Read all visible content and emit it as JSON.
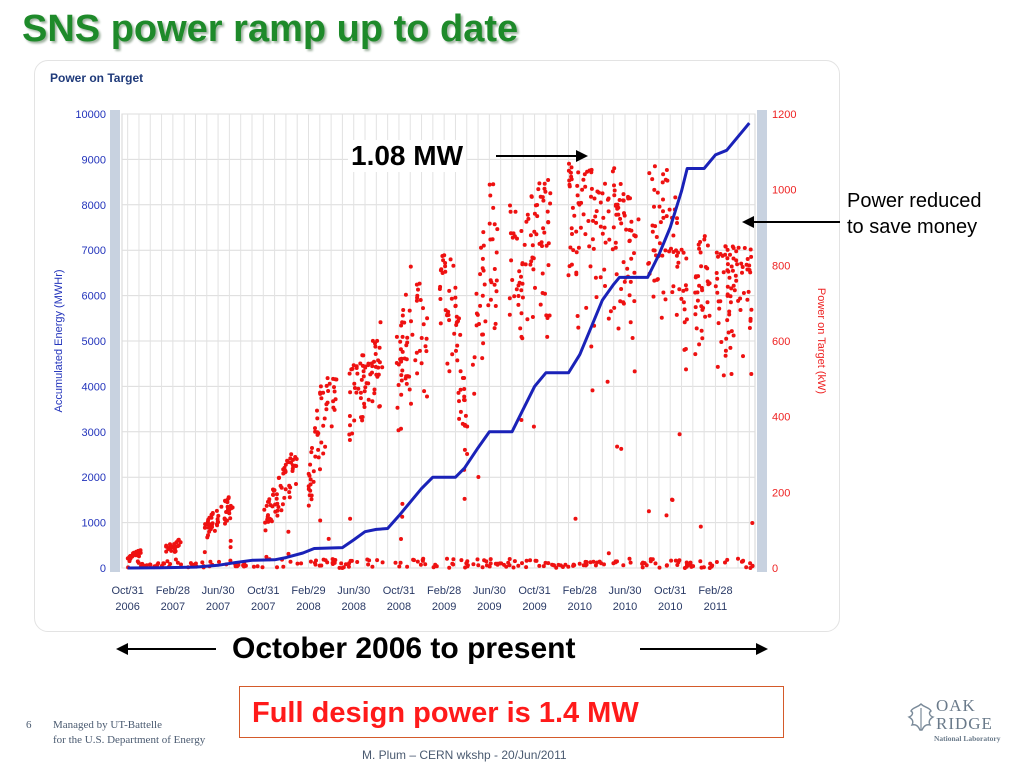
{
  "slide": {
    "title": "SNS power ramp up to date",
    "callout_mw": "1.08 MW",
    "callout_reduced": "Power reduced to save money",
    "callout_period": "October 2006 to present",
    "design_power": "Full design power is 1.4 MW",
    "page_number": "6",
    "managed_by_line1": "Managed by UT-Battelle",
    "managed_by_line2": "for the U.S. Department of Energy",
    "footer_credit": "M. Plum – CERN wkshp - 20/Jun/2011",
    "logo_line1": "OAK",
    "logo_line2": "RIDGE",
    "logo_line3": "National Laboratory"
  },
  "colors": {
    "title_green": "#1e8a2a",
    "energy_line": "#1a22b8",
    "power_points": "#ee1111",
    "axis_left": "#2233bb",
    "axis_right": "#ee2222",
    "design_text": "#ff1a1a"
  },
  "chart_data": {
    "type": "scatter",
    "title": "Power on Target",
    "x_ticks": [
      {
        "line1": "Oct/31",
        "line2": "2006",
        "month": 0
      },
      {
        "line1": "Feb/28",
        "line2": "2007",
        "month": 4
      },
      {
        "line1": "Jun/30",
        "line2": "2007",
        "month": 8
      },
      {
        "line1": "Oct/31",
        "line2": "2007",
        "month": 12
      },
      {
        "line1": "Feb/29",
        "line2": "2008",
        "month": 16
      },
      {
        "line1": "Jun/30",
        "line2": "2008",
        "month": 20
      },
      {
        "line1": "Oct/31",
        "line2": "2008",
        "month": 24
      },
      {
        "line1": "Feb/28",
        "line2": "2009",
        "month": 28
      },
      {
        "line1": "Jun/30",
        "line2": "2009",
        "month": 32
      },
      {
        "line1": "Oct/31",
        "line2": "2009",
        "month": 36
      },
      {
        "line1": "Feb/28",
        "line2": "2010",
        "month": 40
      },
      {
        "line1": "Jun/30",
        "line2": "2010",
        "month": 44
      },
      {
        "line1": "Oct/31",
        "line2": "2010",
        "month": 48
      },
      {
        "line1": "Feb/28",
        "line2": "2011",
        "month": 52
      }
    ],
    "x_range_months": [
      -0.5,
      55.5
    ],
    "y_left": {
      "label": "Accumulated Energy (MWHr)",
      "range": [
        0,
        10000
      ],
      "ticks": [
        0,
        1000,
        2000,
        3000,
        4000,
        5000,
        6000,
        7000,
        8000,
        9000,
        10000
      ]
    },
    "y_right": {
      "label": "Power on Target (kW)",
      "range": [
        0,
        1200
      ],
      "ticks": [
        0,
        200,
        400,
        600,
        800,
        1000,
        1200
      ]
    },
    "grid": true,
    "series": [
      {
        "name": "Accumulated Energy",
        "axis": "left",
        "style": "line",
        "points": [
          [
            0,
            0
          ],
          [
            3,
            5
          ],
          [
            6,
            20
          ],
          [
            8,
            60
          ],
          [
            9.5,
            120
          ],
          [
            11,
            170
          ],
          [
            13,
            180
          ],
          [
            14,
            230
          ],
          [
            15.5,
            330
          ],
          [
            16.5,
            430
          ],
          [
            19,
            450
          ],
          [
            20,
            620
          ],
          [
            21,
            800
          ],
          [
            22,
            850
          ],
          [
            23,
            870
          ],
          [
            24,
            1150
          ],
          [
            25,
            1450
          ],
          [
            26,
            1750
          ],
          [
            27,
            2000
          ],
          [
            29,
            2000
          ],
          [
            29.8,
            2200
          ],
          [
            31,
            2650
          ],
          [
            32,
            3000
          ],
          [
            34,
            3000
          ],
          [
            35,
            3500
          ],
          [
            36,
            4000
          ],
          [
            37,
            4300
          ],
          [
            39,
            4300
          ],
          [
            40,
            4700
          ],
          [
            41,
            5300
          ],
          [
            42,
            5900
          ],
          [
            43,
            6250
          ],
          [
            43.5,
            6400
          ],
          [
            44,
            6400
          ],
          [
            46,
            6400
          ],
          [
            47,
            6900
          ],
          [
            48,
            7500
          ],
          [
            49,
            8300
          ],
          [
            49.5,
            8800
          ],
          [
            51,
            8800
          ],
          [
            52,
            9100
          ],
          [
            53,
            9200
          ],
          [
            54,
            9500
          ],
          [
            55,
            9800
          ]
        ]
      },
      {
        "name": "Power on Target",
        "axis": "right",
        "style": "points",
        "envelope": [
          [
            0,
            30
          ],
          [
            1,
            50
          ],
          [
            2,
            30
          ],
          [
            3,
            70
          ],
          [
            4,
            60
          ],
          [
            5,
            90
          ],
          [
            6,
            40
          ],
          [
            7,
            130
          ],
          [
            8,
            160
          ],
          [
            9,
            190
          ],
          [
            10,
            130
          ],
          [
            11,
            200
          ],
          [
            12,
            150
          ],
          [
            13,
            220
          ],
          [
            14,
            280
          ],
          [
            15,
            330
          ],
          [
            16,
            250
          ],
          [
            17,
            480
          ],
          [
            18,
            520
          ],
          [
            19,
            480
          ],
          [
            20,
            540
          ],
          [
            21,
            570
          ],
          [
            22,
            650
          ],
          [
            23,
            660
          ],
          [
            24,
            600
          ],
          [
            25,
            820
          ],
          [
            26,
            740
          ],
          [
            27,
            700
          ],
          [
            28,
            860
          ],
          [
            29,
            790
          ],
          [
            30,
            420
          ],
          [
            31,
            820
          ],
          [
            32,
            1030
          ],
          [
            33,
            1040
          ],
          [
            34,
            980
          ],
          [
            35,
            900
          ],
          [
            36,
            1020
          ],
          [
            37,
            1040
          ],
          [
            38,
            980
          ],
          [
            39,
            1080
          ],
          [
            40,
            1050
          ],
          [
            41,
            1060
          ],
          [
            42,
            1000
          ],
          [
            43,
            1070
          ],
          [
            44,
            1000
          ],
          [
            45,
            960
          ],
          [
            46,
            1080
          ],
          [
            47,
            1070
          ],
          [
            48,
            1080
          ],
          [
            49,
            870
          ],
          [
            50,
            880
          ],
          [
            51,
            880
          ],
          [
            52,
            860
          ],
          [
            53,
            860
          ],
          [
            54,
            850
          ],
          [
            55,
            850
          ]
        ]
      }
    ]
  }
}
